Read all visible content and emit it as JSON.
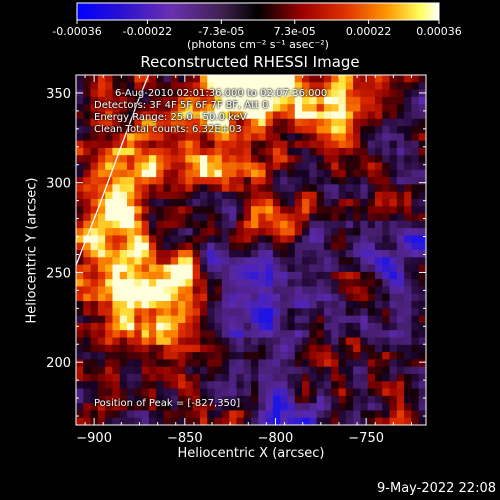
{
  "colorbar": {
    "ticks": [
      "-0.00036",
      "-0.00022",
      "-7.3e-05",
      "7.3e-05",
      "0.00022",
      "0.00036"
    ],
    "tick_values": [
      -0.00036,
      -0.00022,
      -7.3e-05,
      7.3e-05,
      0.00022,
      0.00036
    ],
    "range": [
      -0.00036,
      0.00036
    ],
    "units_label": "(photons cm⁻² s⁻¹ asec⁻²)",
    "colors": [
      "#0000ff",
      "#3a00b0",
      "#6a2aa8",
      "#000000",
      "#8a0000",
      "#d02000",
      "#ff6000",
      "#ffb000",
      "#ffff80",
      "#ffffff"
    ]
  },
  "chart_data": {
    "type": "heatmap",
    "title": "Reconstructed RHESSI Image",
    "xlabel": "Heliocentric X (arcsec)",
    "ylabel": "Heliocentric Y (arcsec)",
    "xlim": [
      -910,
      -717
    ],
    "ylim": [
      165,
      360
    ],
    "xticks": [
      -900,
      -850,
      -800,
      -750
    ],
    "yticks": [
      200,
      250,
      300,
      350
    ],
    "info_lines": [
      "6-Aug-2010 02:01:36.000 to 02:07:36.000",
      "Detectors: 3F 4F 5F 6F 7F 8F, Att 0",
      "Energy Range: 25.0 - 50.0 keV",
      "Clean     Total counts: 6.32E+03"
    ],
    "peak_label": "Position of Peak = [-827,350]",
    "peak": [
      -827,
      350
    ],
    "limb_points": [
      [
        -910,
        254
      ],
      [
        -898,
        285
      ],
      [
        -887,
        315
      ],
      [
        -876,
        345
      ],
      [
        -870,
        360
      ]
    ]
  },
  "footer": {
    "date": "9-May-2022 22:08"
  }
}
